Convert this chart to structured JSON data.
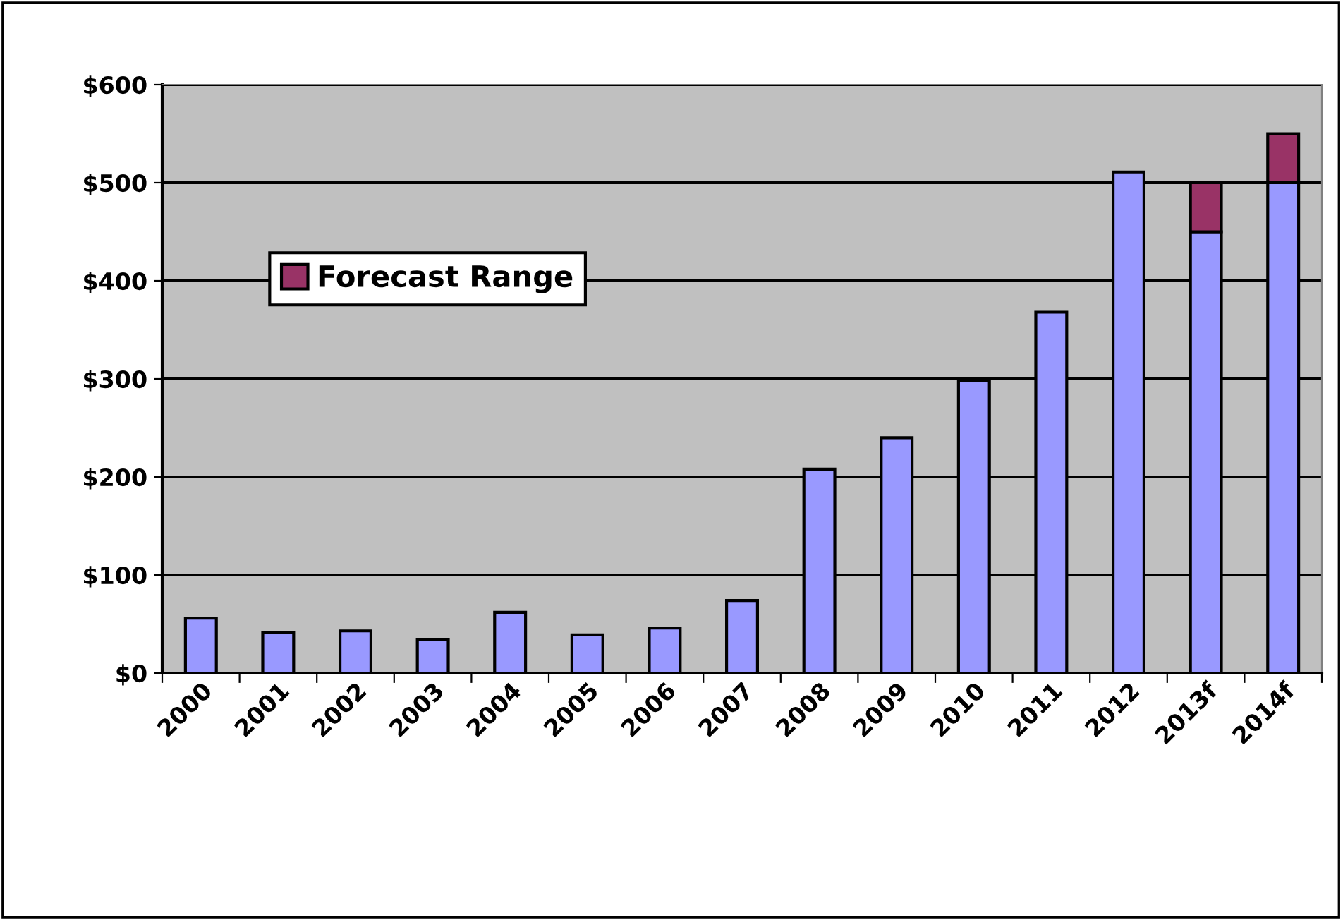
{
  "chart_data": {
    "type": "bar",
    "stacked": true,
    "categories": [
      "2000",
      "2001",
      "2002",
      "2003",
      "2004",
      "2005",
      "2006",
      "2007",
      "2008",
      "2009",
      "2010",
      "2011",
      "2012",
      "2013f",
      "2014f"
    ],
    "series": [
      {
        "color": "#9999ff",
        "values": [
          56,
          41,
          43,
          34,
          62,
          39,
          46,
          74,
          208,
          240,
          298,
          368,
          511,
          450,
          500
        ]
      },
      {
        "name": "Forecast Range",
        "color": "#993366",
        "values": [
          null,
          null,
          null,
          null,
          null,
          null,
          null,
          null,
          null,
          null,
          null,
          null,
          null,
          50,
          50
        ]
      }
    ],
    "ylim": [
      0,
      600
    ],
    "yticks": [
      {
        "value": 0,
        "label": "$0"
      },
      {
        "value": 100,
        "label": "$100"
      },
      {
        "value": 200,
        "label": "$200"
      },
      {
        "value": 300,
        "label": "$300"
      },
      {
        "value": 400,
        "label": "$400"
      },
      {
        "value": 500,
        "label": "$500"
      },
      {
        "value": 600,
        "label": "$600"
      }
    ],
    "grid": "y",
    "legend": "left"
  }
}
